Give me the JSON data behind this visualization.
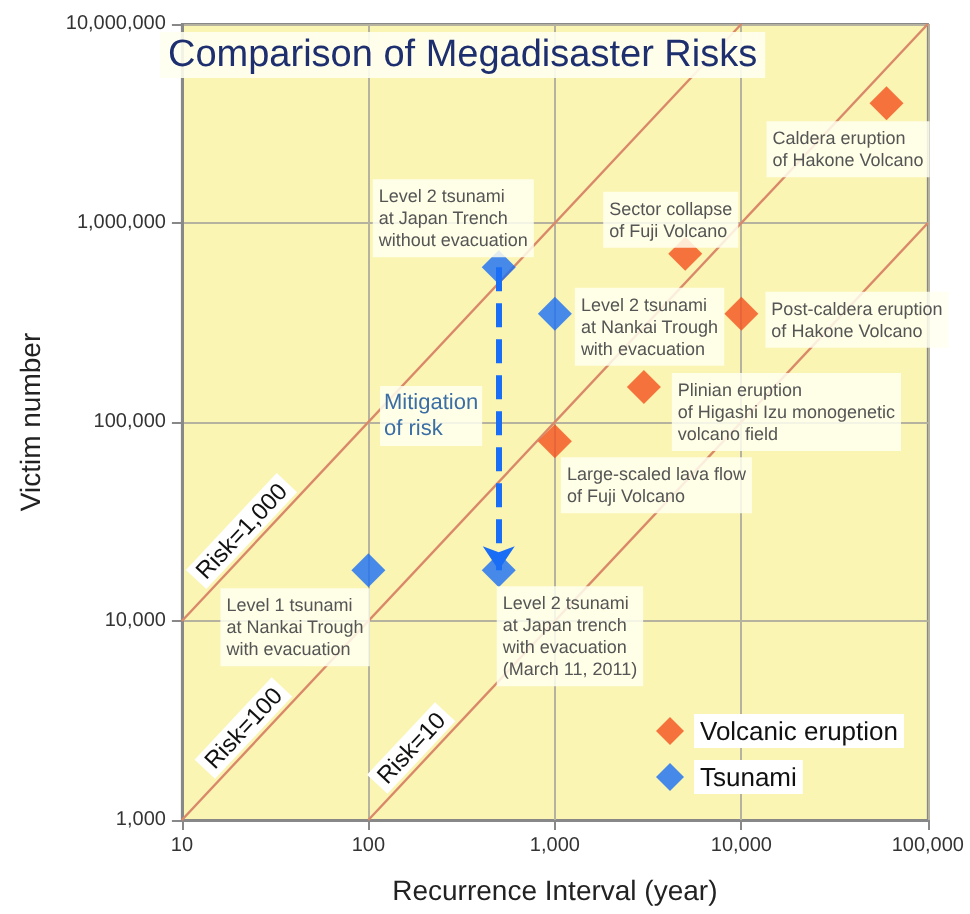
{
  "chart_data": {
    "type": "scatter",
    "title": "Comparison of Megadisaster Risks",
    "xlabel": "Recurrence Interval (year)",
    "ylabel": "Victim number",
    "log": "xy",
    "grid": true,
    "legend": "bottom right",
    "xlim": [
      10,
      100000
    ],
    "ylim": [
      1000,
      10000000
    ],
    "xticks": [
      10,
      100,
      {
        "value": 1000,
        "label": "1,000"
      },
      {
        "value": 10000,
        "label": "10,000"
      },
      {
        "value": 100000,
        "label": "100,000"
      }
    ],
    "yticks": [
      {
        "value": 1000,
        "label": "1,000"
      },
      {
        "value": 10000,
        "label": "10,000"
      },
      {
        "value": 100000,
        "label": "100,000"
      },
      {
        "value": 1000000,
        "label": "1,000,000"
      },
      {
        "value": 10000000,
        "label": "10,000,000"
      }
    ],
    "series": [
      {
        "name": "Volcanic eruption",
        "marker": "diamond",
        "color": "#f4511e",
        "x": [
          60000,
          5000,
          10000,
          3000,
          1000
        ],
        "values": [
          4000000,
          700000,
          350000,
          150000,
          80000
        ]
      },
      {
        "name": "Tsunami",
        "marker": "diamond",
        "color": "#1a6ef5",
        "x": [
          100,
          500,
          500,
          1000
        ],
        "values": [
          18000,
          600000,
          18000,
          350000
        ]
      },
      {
        "name": "Risk=1,000",
        "type": "line",
        "marker": "none",
        "color": "#d9896a",
        "x": [
          10,
          10000
        ],
        "values": [
          10000,
          10000000
        ]
      },
      {
        "name": "Risk=100",
        "type": "line",
        "marker": "none",
        "color": "#d9896a",
        "x": [
          10,
          100000
        ],
        "values": [
          1000,
          10000000
        ]
      },
      {
        "name": "Risk=10",
        "type": "line",
        "marker": "none",
        "color": "#d9896a",
        "x": [
          100,
          100000
        ],
        "values": [
          1000,
          1000000
        ]
      }
    ],
    "annotations": [
      {
        "text": "Caldera eruption\nof Hakone Volcano",
        "x": 60000,
        "y": 4000000
      },
      {
        "text": "Sector collapse\nof Fuji Volcano",
        "x": 5000,
        "y": 700000
      },
      {
        "text": "Level 2 tsunami\nat Japan Trench\nwithout evacuation",
        "x": 500,
        "y": 600000
      },
      {
        "text": "Level 2 tsunami\nat Nankai Trough\nwith evacuation",
        "x": 1000,
        "y": 350000
      },
      {
        "text": "Post-caldera eruption\nof Hakone Volcano",
        "x": 10000,
        "y": 350000
      },
      {
        "text": "Plinian eruption\nof Higashi Izu monogenetic\nvolcano field",
        "x": 3000,
        "y": 150000
      },
      {
        "text": "Large-scaled lava flow\nof Fuji Volcano",
        "x": 1000,
        "y": 80000
      },
      {
        "text": "Level 1 tsunami\nat Nankai Trough\nwith evacuation",
        "x": 100,
        "y": 18000
      },
      {
        "text": "Level 2 tsunami\nat Japan trench\nwith evacuation\n(March 11, 2011)",
        "x": 500,
        "y": 18000
      },
      "Mitigation\nof risk"
    ]
  }
}
